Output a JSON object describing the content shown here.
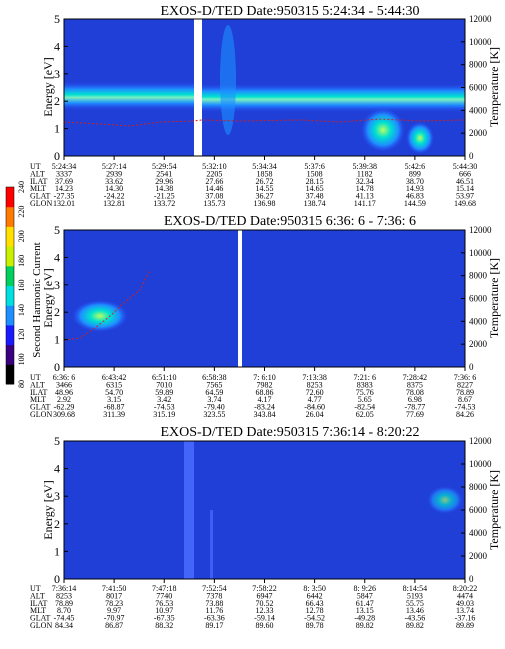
{
  "chart_data": [
    {
      "type": "heatmap",
      "title": "EXOS-D/TED   Date:950315  5:24:34 - 5:44:30",
      "ylabel": "Energy [eV]",
      "y2label": "Temperature [K]",
      "ylim": [
        0,
        5
      ],
      "y2lim": [
        0,
        12000
      ],
      "yticks": [
        "0",
        "1",
        "2",
        "3",
        "4",
        "5"
      ],
      "y2ticks": [
        "0",
        "2000",
        "4000",
        "6000",
        "8000",
        "10000",
        "12000"
      ],
      "band_center_ev": 2.2,
      "band_level": 0.55,
      "gap_fraction": [
        0.295,
        0.315
      ],
      "rows": [
        {
          "label": "UT",
          "values": [
            "5:24:34",
            "5:27:14",
            "5:29:54",
            "5:32:10",
            "5:34:34",
            "5:37:6",
            "5:39:38",
            "5:42:6",
            "5:44:30"
          ]
        },
        {
          "label": "ALT",
          "values": [
            "3337",
            "2939",
            "2541",
            "2205",
            "1858",
            "1508",
            "1182",
            "899",
            "666"
          ]
        },
        {
          "label": "ILAT",
          "values": [
            "37.69",
            "33.62",
            "29.96",
            "27.66",
            "26.72",
            "28.15",
            "32.34",
            "38.70",
            "46.51"
          ]
        },
        {
          "label": "MLT",
          "values": [
            "14.23",
            "14.30",
            "14.38",
            "14.46",
            "14.55",
            "14.65",
            "14.78",
            "14.93",
            "15.14"
          ]
        },
        {
          "label": "GLAT",
          "values": [
            "-27.35",
            "-24.22",
            "-21.25",
            "37.08",
            "36.27",
            "37.48",
            "41.13",
            "46.83",
            "53.97"
          ]
        },
        {
          "label": "GLON",
          "values": [
            "132.01",
            "132.81",
            "133.72",
            "135.73",
            "136.98",
            "138.74",
            "141.17",
            "144.59",
            "149.68"
          ]
        }
      ]
    },
    {
      "type": "heatmap",
      "title": "EXOS-D/TED   Date:950315  6:36: 6 - 7:36: 6",
      "ylabel": "Energy [eV]",
      "y2label": "Temperature [K]",
      "ylim": [
        0,
        5
      ],
      "y2lim": [
        0,
        12000
      ],
      "yticks": [
        "0",
        "1",
        "2",
        "3",
        "4",
        "5"
      ],
      "y2ticks": [
        "0",
        "2000",
        "4000",
        "6000",
        "8000",
        "10000",
        "12000"
      ],
      "band_center_ev": 2.1,
      "band_level": 0.45,
      "gap_fraction": [
        0.515,
        0.525
      ],
      "rows": [
        {
          "label": "UT",
          "values": [
            "6:36: 6",
            "6:43:42",
            "6:51:10",
            "6:58:38",
            "7: 6:10",
            "7:13:38",
            "7:21: 6",
            "7:28:42",
            "7:36: 6"
          ]
        },
        {
          "label": "ALT",
          "values": [
            "3466",
            "6315",
            "7010",
            "7565",
            "7982",
            "8253",
            "8383",
            "8375",
            "8227"
          ]
        },
        {
          "label": "ILAT",
          "values": [
            "48.96",
            "54.70",
            "59.89",
            "64.59",
            "68.86",
            "72.60",
            "75.76",
            "78.08",
            "78.89"
          ]
        },
        {
          "label": "MLT",
          "values": [
            "2.92",
            "3.15",
            "3.42",
            "3.74",
            "4.17",
            "4.77",
            "5.65",
            "6.98",
            "8.67"
          ]
        },
        {
          "label": "GLAT",
          "values": [
            "-62.29",
            "-68.87",
            "-74.53",
            "-79.40",
            "-83.24",
            "-84.60",
            "-82.54",
            "-78.77",
            "-74.53"
          ]
        },
        {
          "label": "GLON",
          "values": [
            "309.68",
            "311.39",
            "315.19",
            "323.55",
            "343.84",
            "26.04",
            "62.05",
            "77.69",
            "84.26"
          ]
        }
      ]
    },
    {
      "type": "heatmap",
      "title": "EXOS-D/TED   Date:950315  7:36:14 - 8:20:22",
      "ylabel": "Energy [eV]",
      "y2label": "Temperature [K]",
      "ylim": [
        0,
        5
      ],
      "y2lim": [
        0,
        12000
      ],
      "yticks": [
        "0",
        "1",
        "2",
        "3",
        "4",
        "5"
      ],
      "y2ticks": [
        "0",
        "2000",
        "4000",
        "6000",
        "8000",
        "10000",
        "12000"
      ],
      "band_center_ev": 0,
      "band_level": 0,
      "gap_fraction": [
        0,
        0
      ],
      "rows": [
        {
          "label": "UT",
          "values": [
            "7:36:14",
            "7:41:50",
            "7:47:18",
            "7:52:54",
            "7:58:22",
            "8: 3:50",
            "8: 9:26",
            "8:14:54",
            "8:20:22"
          ]
        },
        {
          "label": "ALT",
          "values": [
            "8253",
            "8017",
            "7740",
            "7378",
            "6947",
            "6442",
            "5847",
            "5193",
            "4474"
          ]
        },
        {
          "label": "ILAT",
          "values": [
            "78.89",
            "78.23",
            "76.53",
            "73.88",
            "70.52",
            "66.43",
            "61.47",
            "55.75",
            "49.03"
          ]
        },
        {
          "label": "MLT",
          "values": [
            "8.70",
            "9.97",
            "10.97",
            "11.76",
            "12.33",
            "12.78",
            "13.15",
            "13.46",
            "13.74"
          ]
        },
        {
          "label": "GLAT",
          "values": [
            "-74.45",
            "-70.97",
            "-67.35",
            "-63.36",
            "-59.14",
            "-54.52",
            "-49.28",
            "-43.56",
            "-37.16"
          ]
        },
        {
          "label": "GLON",
          "values": [
            "84.34",
            "86.87",
            "88.32",
            "89.17",
            "89.60",
            "89.78",
            "89.82",
            "89.82",
            "89.89"
          ]
        }
      ]
    }
  ],
  "colorbar": {
    "label": "Second Harmonic Current",
    "ticks": [
      "80",
      "100",
      "120",
      "140",
      "160",
      "180",
      "200",
      "220",
      "240"
    ],
    "colors": [
      "#000000",
      "#3a0080",
      "#1a1aff",
      "#1e8fff",
      "#00e0e0",
      "#00d060",
      "#c8f000",
      "#ffe000",
      "#ff7a00",
      "#ff0000"
    ]
  }
}
